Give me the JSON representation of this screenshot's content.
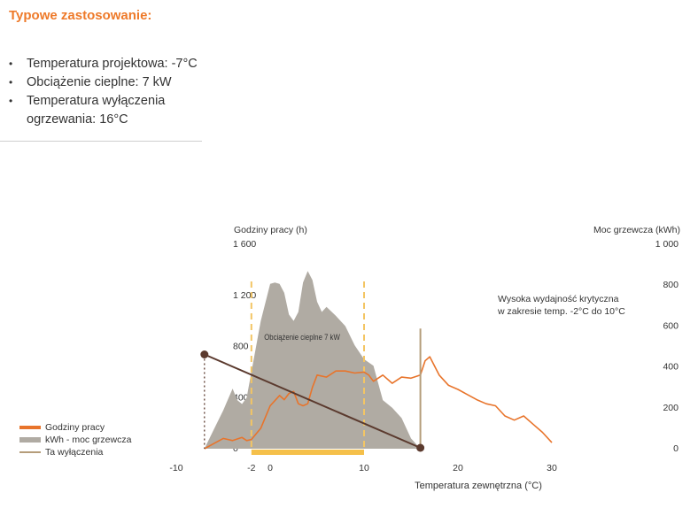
{
  "section": {
    "title": "Typowe zastosowanie:",
    "bullets": [
      "Temperatura projektowa: -7°C",
      "Obciążenie cieplne: 7 kW",
      "Temperatura wyłączenia ogrzewania: 16°C"
    ]
  },
  "legend": {
    "items": [
      {
        "label": "Godziny pracy",
        "color": "#e8742b",
        "kind": "thick"
      },
      {
        "label": "kWh - moc grzewcza",
        "color": "#b0aba3",
        "kind": "block"
      },
      {
        "label": "Ta wyłączenia",
        "color": "#b59d7a",
        "kind": "thin"
      }
    ]
  },
  "chart_data": {
    "type": "area",
    "xlabel": "Temperatura zewnętrzna (°C)",
    "ylabel_left": "Godziny pracy (h)",
    "ylabel_right": "Moc grzewcza (kWh)",
    "xlim": [
      -12,
      31
    ],
    "xticks": [
      -10,
      -2,
      0,
      10,
      20,
      30
    ],
    "xtick_labels": [
      "-10",
      "-2",
      "0",
      "10",
      "20",
      "30"
    ],
    "ylim_left": [
      0,
      1600
    ],
    "yticks_left": [
      0,
      400,
      800,
      1200,
      1600
    ],
    "ytick_labels_left": [
      "0",
      "400",
      "800",
      "1 200",
      "1 600"
    ],
    "ylim_right": [
      0,
      1000
    ],
    "yticks_right": [
      0,
      200,
      400,
      600,
      800,
      1000
    ],
    "ytick_labels_right": [
      "0",
      "200",
      "400",
      "600",
      "800",
      "1 000"
    ],
    "colors": {
      "area": "#b0aba3",
      "hours": "#e8742b",
      "cutoff": "#b59d7a",
      "dashed": "#f3c564",
      "band": "#f5c04a",
      "load": "#5b3a2e"
    },
    "series": [
      {
        "name": "kWh - moc grzewcza",
        "axis": "left",
        "style": "area",
        "x": [
          -7,
          -6,
          -5,
          -4,
          -3.5,
          -3,
          -2.5,
          -2,
          -1,
          0,
          0.5,
          1,
          1.5,
          2,
          2.5,
          3,
          3.5,
          4,
          4.5,
          5,
          5.5,
          6,
          7,
          8,
          9,
          10,
          11,
          12,
          13,
          14,
          15,
          16
        ],
        "y": [
          0,
          150,
          300,
          470,
          380,
          350,
          400,
          600,
          1000,
          1290,
          1300,
          1290,
          1220,
          1050,
          1000,
          1070,
          1300,
          1390,
          1320,
          1150,
          1070,
          1110,
          1040,
          960,
          810,
          700,
          650,
          380,
          320,
          240,
          80,
          0
        ]
      },
      {
        "name": "Godziny pracy",
        "axis": "right",
        "style": "line",
        "x": [
          -7,
          -6,
          -5,
          -4,
          -3,
          -2.5,
          -2,
          -1,
          0,
          1,
          1.5,
          2,
          2.5,
          3,
          3.5,
          4,
          4.5,
          5,
          6,
          7,
          8,
          9,
          10,
          10.5,
          11,
          12,
          13,
          14,
          15,
          16,
          16.5,
          17,
          18,
          19,
          20,
          21,
          22,
          23,
          24,
          25,
          26,
          27,
          28,
          29,
          30
        ],
        "y": [
          0,
          25,
          50,
          40,
          55,
          40,
          45,
          100,
          210,
          260,
          240,
          270,
          280,
          220,
          210,
          220,
          300,
          360,
          350,
          380,
          380,
          370,
          375,
          360,
          330,
          360,
          320,
          350,
          345,
          360,
          430,
          450,
          360,
          310,
          290,
          265,
          240,
          220,
          210,
          160,
          140,
          160,
          120,
          80,
          30
        ]
      }
    ],
    "design_load": {
      "label": "Obciążenie cieplne 7 kW",
      "start": [
        -7,
        800
      ],
      "end": [
        16,
        0
      ]
    },
    "cutoff": {
      "x": 16,
      "ylim_left": [
        0,
        940
      ]
    },
    "critical_range": {
      "x": [
        -2,
        10
      ],
      "label": "Wysoka wydajność krytyczna w zakresie temp. -2°C do 10°C"
    }
  }
}
